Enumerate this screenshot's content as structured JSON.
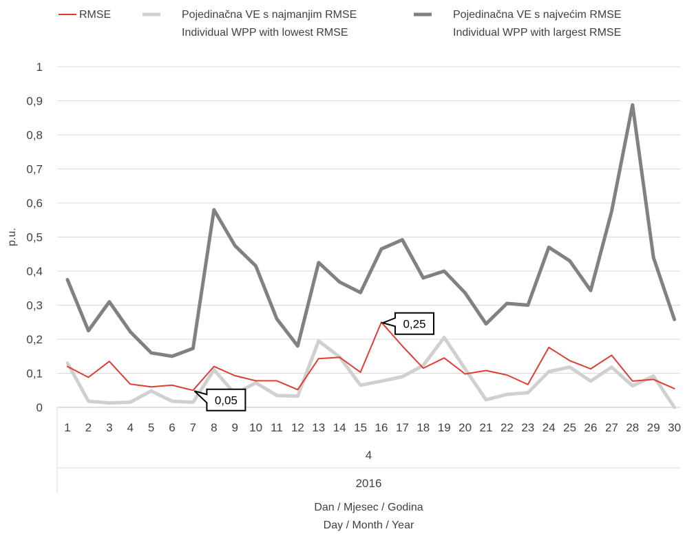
{
  "chart_data": {
    "type": "line",
    "title": "",
    "ylabel": "p.u.",
    "xlabel_lines": [
      "Dan / Mjesec / Godina",
      "Day / Month / Year"
    ],
    "x_group_month": "4",
    "x_group_year": "2016",
    "categories": [
      "1",
      "2",
      "3",
      "4",
      "5",
      "6",
      "7",
      "8",
      "9",
      "10",
      "11",
      "12",
      "13",
      "14",
      "15",
      "16",
      "17",
      "18",
      "19",
      "20",
      "21",
      "22",
      "23",
      "24",
      "25",
      "26",
      "27",
      "28",
      "29",
      "30"
    ],
    "ylim": [
      0,
      1
    ],
    "yticks": [
      0,
      0.1,
      0.2,
      0.3,
      0.4,
      0.5,
      0.6,
      0.7,
      0.8,
      0.9,
      1
    ],
    "ytick_labels": [
      "0",
      "0,1",
      "0,2",
      "0,3",
      "0,4",
      "0,5",
      "0,6",
      "0,7",
      "0,8",
      "0,9",
      "1"
    ],
    "grid": true,
    "legend_position": "top",
    "series": [
      {
        "name": "RMSE",
        "name_lines": [
          "RMSE"
        ],
        "color": "#e03c31",
        "width": 2,
        "values": [
          0.12,
          0.088,
          0.135,
          0.068,
          0.06,
          0.065,
          0.05,
          0.12,
          0.093,
          0.078,
          0.078,
          0.052,
          0.143,
          0.147,
          0.103,
          0.25,
          0.18,
          0.115,
          0.145,
          0.098,
          0.108,
          0.095,
          0.067,
          0.176,
          0.137,
          0.113,
          0.153,
          0.077,
          0.082,
          0.055
        ]
      },
      {
        "name": "Pojedinačna VE s najmanjim RMSE / Individual WPP with lowest RMSE",
        "name_lines": [
          "Pojedinačna VE s najmanjim RMSE",
          "Individual WPP with lowest RMSE"
        ],
        "color": "#cfd1d1",
        "width": 5,
        "values": [
          0.13,
          0.018,
          0.013,
          0.015,
          0.048,
          0.018,
          0.015,
          0.11,
          0.04,
          0.072,
          0.035,
          0.033,
          0.195,
          0.148,
          0.065,
          0.077,
          0.09,
          0.123,
          0.205,
          0.113,
          0.022,
          0.038,
          0.043,
          0.105,
          0.118,
          0.077,
          0.118,
          0.063,
          0.092,
          0.0
        ]
      },
      {
        "name": "Pojedinačna VE s najvećim RMSE / Individual WPP with largest RMSE",
        "name_lines": [
          "Pojedinačna VE s najvećim RMSE",
          "Individual WPP with largest RMSE"
        ],
        "color": "#7f8183",
        "width": 5,
        "values": [
          0.375,
          0.225,
          0.31,
          0.222,
          0.16,
          0.15,
          0.173,
          0.58,
          0.475,
          0.415,
          0.26,
          0.18,
          0.425,
          0.368,
          0.337,
          0.465,
          0.492,
          0.38,
          0.4,
          0.336,
          0.245,
          0.305,
          0.3,
          0.47,
          0.43,
          0.343,
          0.575,
          0.888,
          0.44,
          0.258
        ]
      }
    ],
    "annotations": [
      {
        "series": "RMSE",
        "x": "7",
        "y": 0.05,
        "text": "0,05"
      },
      {
        "series": "RMSE",
        "x": "16",
        "y": 0.25,
        "text": "0,25"
      }
    ]
  }
}
